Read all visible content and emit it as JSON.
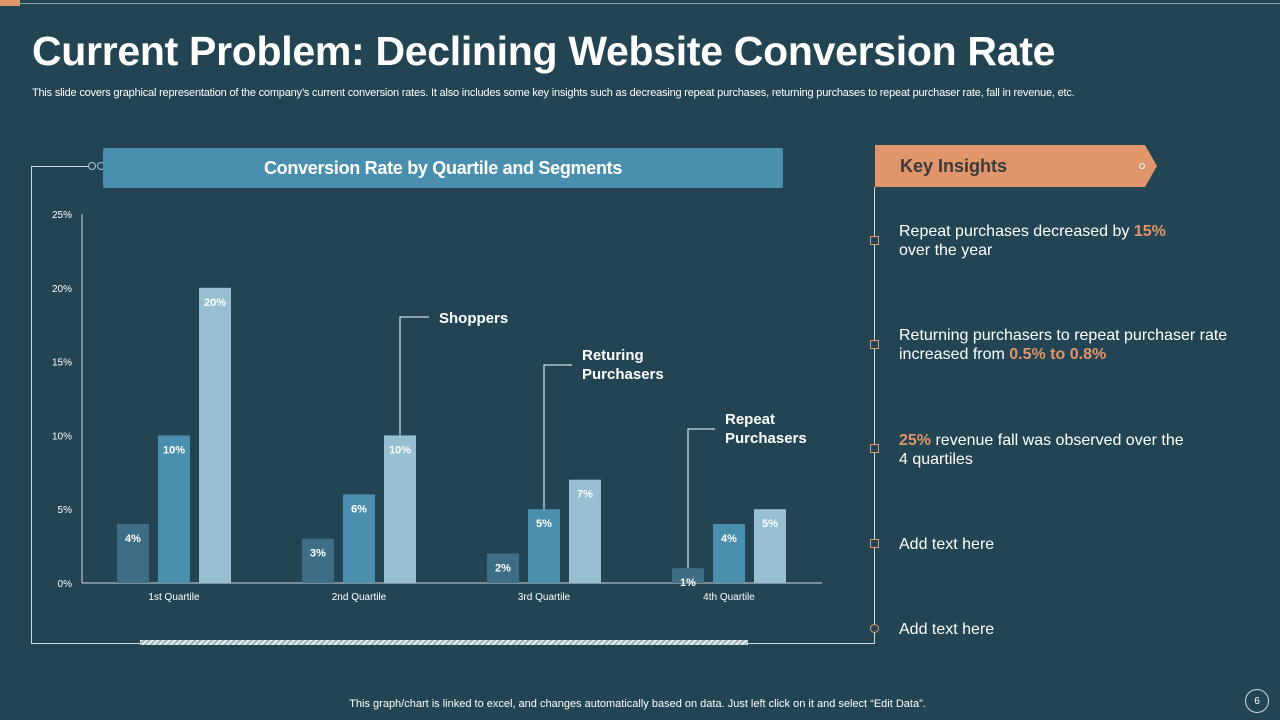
{
  "slide": {
    "title": "Current Problem: Declining Website Conversion Rate",
    "subtitle": "This slide covers graphical representation of the company’s current conversion rates. It also includes some key insights such as decreasing repeat purchases, returning purchases to repeat purchaser rate, fall in revenue, etc.",
    "footer": "This graph/chart is linked to excel,  and changes automatically based on data. Just left click on it and select “Edit Data”.",
    "page_number": "6"
  },
  "colors": {
    "background": "#234452",
    "accent": "#e0956b",
    "header_blue": "#4a8fae",
    "series": [
      "#3d6e86",
      "#4a8fae",
      "#97c0d2"
    ]
  },
  "chart_data": {
    "type": "bar",
    "title": "Conversion Rate by Quartile and Segments",
    "categories": [
      "1st Quartile",
      "2nd Quartile",
      "3rd Quartile",
      "4th Quartile"
    ],
    "series": [
      {
        "name": "Repeat Purchasers",
        "values": [
          4,
          3,
          2,
          1
        ]
      },
      {
        "name": "Returing Purchasers",
        "values": [
          10,
          6,
          5,
          4
        ]
      },
      {
        "name": "Shoppers",
        "values": [
          20,
          10,
          7,
          5
        ]
      }
    ],
    "y_ticks": [
      "0%",
      "5%",
      "10%",
      "15%",
      "20%",
      "25%"
    ],
    "ylim": [
      0,
      25
    ],
    "value_suffix": "%",
    "callouts": [
      {
        "line1": "Shoppers",
        "line2": ""
      },
      {
        "line1": "Returing",
        "line2": "Purchasers"
      },
      {
        "line1": "Repeat",
        "line2": "Purchasers"
      }
    ]
  },
  "insights": {
    "header": "Key Insights",
    "items": [
      {
        "pre": "Repeat purchases decreased by ",
        "hl": "15%",
        "post": "",
        "line2": "over the year"
      },
      {
        "pre": "Returning purchasers to repeat purchaser rate",
        "hl": "",
        "post": "",
        "line2_pre": "increased from ",
        "line2_hl": "0.5% to 0.8%"
      },
      {
        "hl": "25%",
        "post": " revenue fall was observed over the",
        "line2": "4 quartiles"
      },
      {
        "text": "Add text here"
      },
      {
        "text": "Add text here"
      }
    ]
  }
}
